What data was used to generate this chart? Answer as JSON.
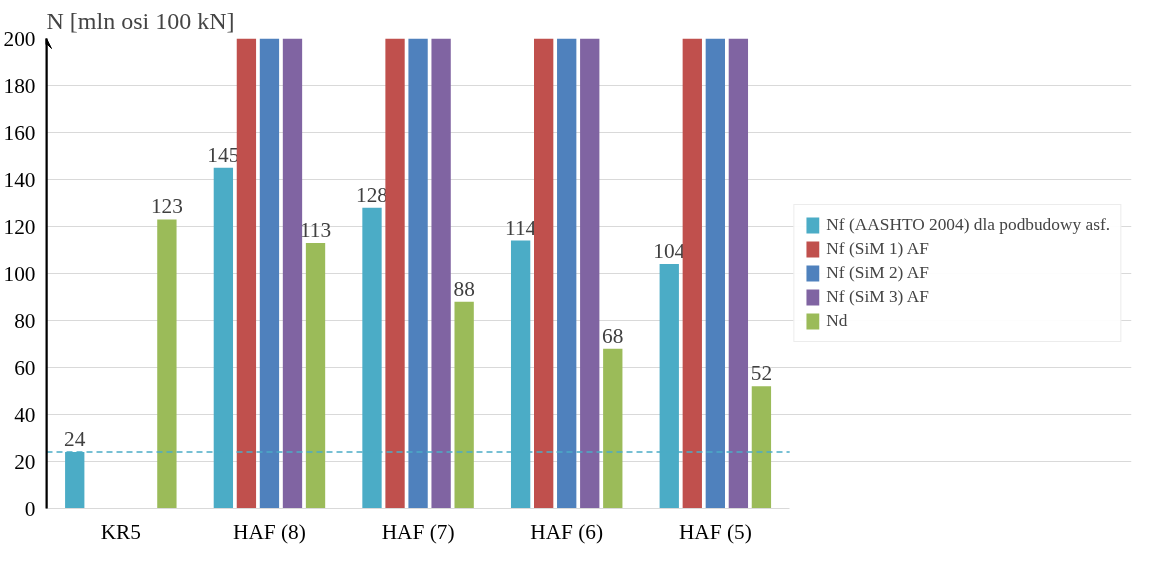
{
  "chart_data": {
    "type": "bar",
    "ylabel": "N [mln osi 100 kN]",
    "categories": [
      "KR5",
      "HAF (8)",
      "HAF (7)",
      "HAF (6)",
      "HAF (5)"
    ],
    "series": [
      {
        "name": "Nf (AASHTO 2004) dla podbudowy asf.",
        "color": "#4bacc6",
        "values": [
          24,
          145,
          128,
          114,
          104
        ],
        "value_labels": [
          "24",
          "145",
          "128",
          "114",
          "104"
        ]
      },
      {
        "name": "Nf (SiM 1) AF",
        "color": "#c0504d",
        "values": [
          null,
          200,
          200,
          200,
          200
        ]
      },
      {
        "name": "Nf (SiM 2) AF",
        "color": "#4f81bd",
        "values": [
          null,
          200,
          200,
          200,
          200
        ]
      },
      {
        "name": "Nf (SiM 3) AF",
        "color": "#8064a2",
        "values": [
          null,
          200,
          200,
          200,
          200
        ]
      },
      {
        "name": "Nd",
        "color": "#9bbb59",
        "values": [
          123,
          113,
          88,
          68,
          52
        ],
        "value_labels": [
          "123",
          "113",
          "88",
          "68",
          "52"
        ]
      }
    ],
    "ylim": [
      0,
      200
    ],
    "yticks": [
      0,
      20,
      40,
      60,
      80,
      100,
      120,
      140,
      160,
      180,
      200
    ],
    "grid": "y",
    "legend": "right",
    "ref_lines": [
      {
        "axis": "y",
        "value": 24,
        "color": "#4bacc6",
        "line_style": "dashed"
      }
    ]
  }
}
